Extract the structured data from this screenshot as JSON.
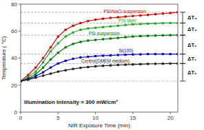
{
  "chart_data": {
    "type": "line",
    "title": "Illumination Intensity = 300 mW/cm²",
    "xlabel": "NIR Exposure Time (min)",
    "ylabel": "Temperature ( °C)",
    "x": [
      0,
      1,
      2,
      3,
      4,
      5,
      6,
      7,
      8,
      9,
      10,
      11,
      12,
      13,
      14,
      15,
      16,
      17,
      18,
      19,
      20,
      21
    ],
    "series": [
      {
        "name": "PSi/NaCl-suspension",
        "color": "#dd0000",
        "marker": "square",
        "line_style": "solid",
        "values": [
          23,
          27.5,
          33,
          40,
          48,
          56,
          61,
          64,
          66,
          67.5,
          68.5,
          69.2,
          69.8,
          70.3,
          70.8,
          71.2,
          71.6,
          72,
          72.5,
          73,
          73.4,
          74
        ]
      },
      {
        "name": "PSi layer",
        "color": "#22aa22",
        "marker": "square",
        "line_style": "solid",
        "values": [
          23,
          26,
          30,
          37,
          45,
          51,
          56,
          59,
          61,
          62,
          62.5,
          63,
          63.5,
          64,
          64.5,
          65,
          65.2,
          65.5,
          65.7,
          65.9,
          66,
          66
        ]
      },
      {
        "name": "PSi-suspension",
        "color": "#007700",
        "marker": "square",
        "line_style": "solid",
        "values": [
          23,
          25,
          28,
          33,
          39,
          44,
          48,
          50.5,
          52,
          53,
          53.5,
          54,
          54.5,
          55,
          55.5,
          56,
          56.3,
          56.5,
          56.7,
          56.9,
          57,
          57
        ]
      },
      {
        "name": "Si(100)",
        "color": "#0000cc",
        "marker": "square",
        "line_style": "solid",
        "values": [
          23,
          24.5,
          26.5,
          29.5,
          33,
          36,
          38,
          39.5,
          40.5,
          41,
          41.5,
          41.8,
          42,
          42.3,
          42.5,
          42.7,
          42.8,
          43,
          43,
          43,
          43,
          43
        ]
      },
      {
        "name": "Control(DMEM medium)",
        "color": "#222222",
        "marker": "square",
        "line_style": "solid",
        "values": [
          23,
          24,
          25.5,
          27,
          28.5,
          30,
          31,
          32,
          32.8,
          33.4,
          33.9,
          34.3,
          34.6,
          34.9,
          35.1,
          35.3,
          35.5,
          35.7,
          35.8,
          35.9,
          36,
          36
        ]
      }
    ],
    "baseline": 23,
    "levels": [
      23,
      36,
      43,
      57,
      66,
      74
    ],
    "delta_labels": [
      "ΔT₀",
      "ΔT₁",
      "ΔT₂",
      "ΔT₃",
      "ΔT₄"
    ],
    "xlim": [
      0,
      21
    ],
    "ylim": [
      0,
      80
    ],
    "xticks": [
      0,
      5,
      10,
      15,
      20
    ],
    "yticks": [
      0,
      20,
      40,
      60,
      80
    ]
  }
}
